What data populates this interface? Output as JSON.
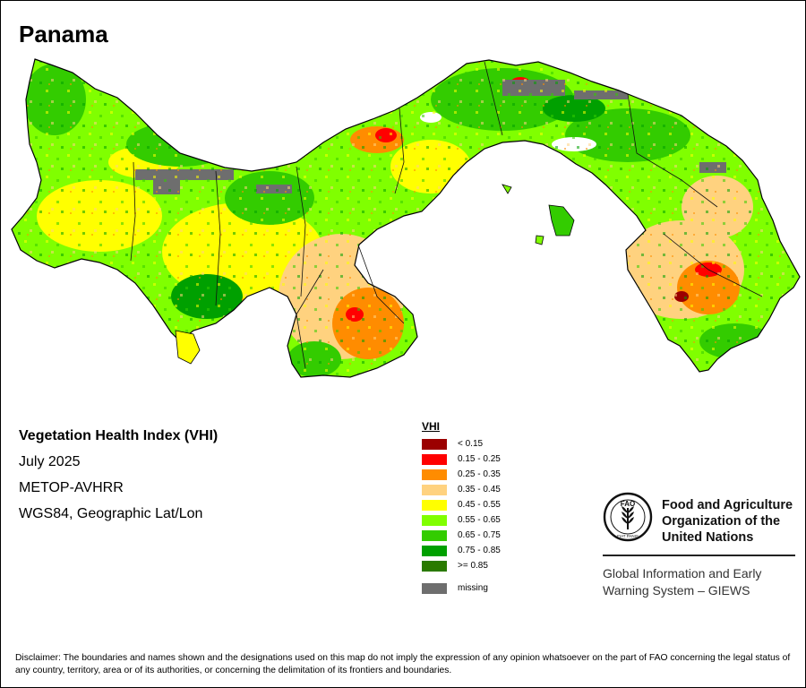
{
  "map": {
    "title": "Panama",
    "info": {
      "index_name": "Vegetation Health Index (VHI)",
      "period": "July 2025",
      "sensor": "METOP-AVHRR",
      "projection": "WGS84, Geographic Lat/Lon"
    },
    "legend": {
      "title": "VHI",
      "classes": [
        {
          "label": "< 0.15",
          "color": "#9b0000"
        },
        {
          "label": "0.15 - 0.25",
          "color": "#ff0000"
        },
        {
          "label": "0.25 - 0.35",
          "color": "#ff8c00"
        },
        {
          "label": "0.35 - 0.45",
          "color": "#ffd27f"
        },
        {
          "label": "0.45 - 0.55",
          "color": "#ffff00"
        },
        {
          "label": "0.55 - 0.65",
          "color": "#80ff00"
        },
        {
          "label": "0.65 - 0.75",
          "color": "#33cc00"
        },
        {
          "label": "0.75 - 0.85",
          "color": "#00a000"
        },
        {
          "label": ">= 0.85",
          "color": "#2a7a00"
        }
      ],
      "missing": {
        "label": "missing",
        "color": "#6e6e6e"
      }
    }
  },
  "org": {
    "name_line1": "Food and Agriculture",
    "name_line2": "Organization of the",
    "name_line3": "United Nations",
    "logo_letters": "FAO",
    "logo_motto": "FIAT PANIS",
    "system_line1": "Global Information and Early",
    "system_line2": "Warning System – GIEWS"
  },
  "disclaimer": "Disclaimer: The boundaries and names shown and the designations used on this map do not imply the expression of any opinion whatsoever on the part of FAO concerning the legal status of any country, territory, area or of its authorities, or concerning the delimitation of its frontiers and boundaries."
}
